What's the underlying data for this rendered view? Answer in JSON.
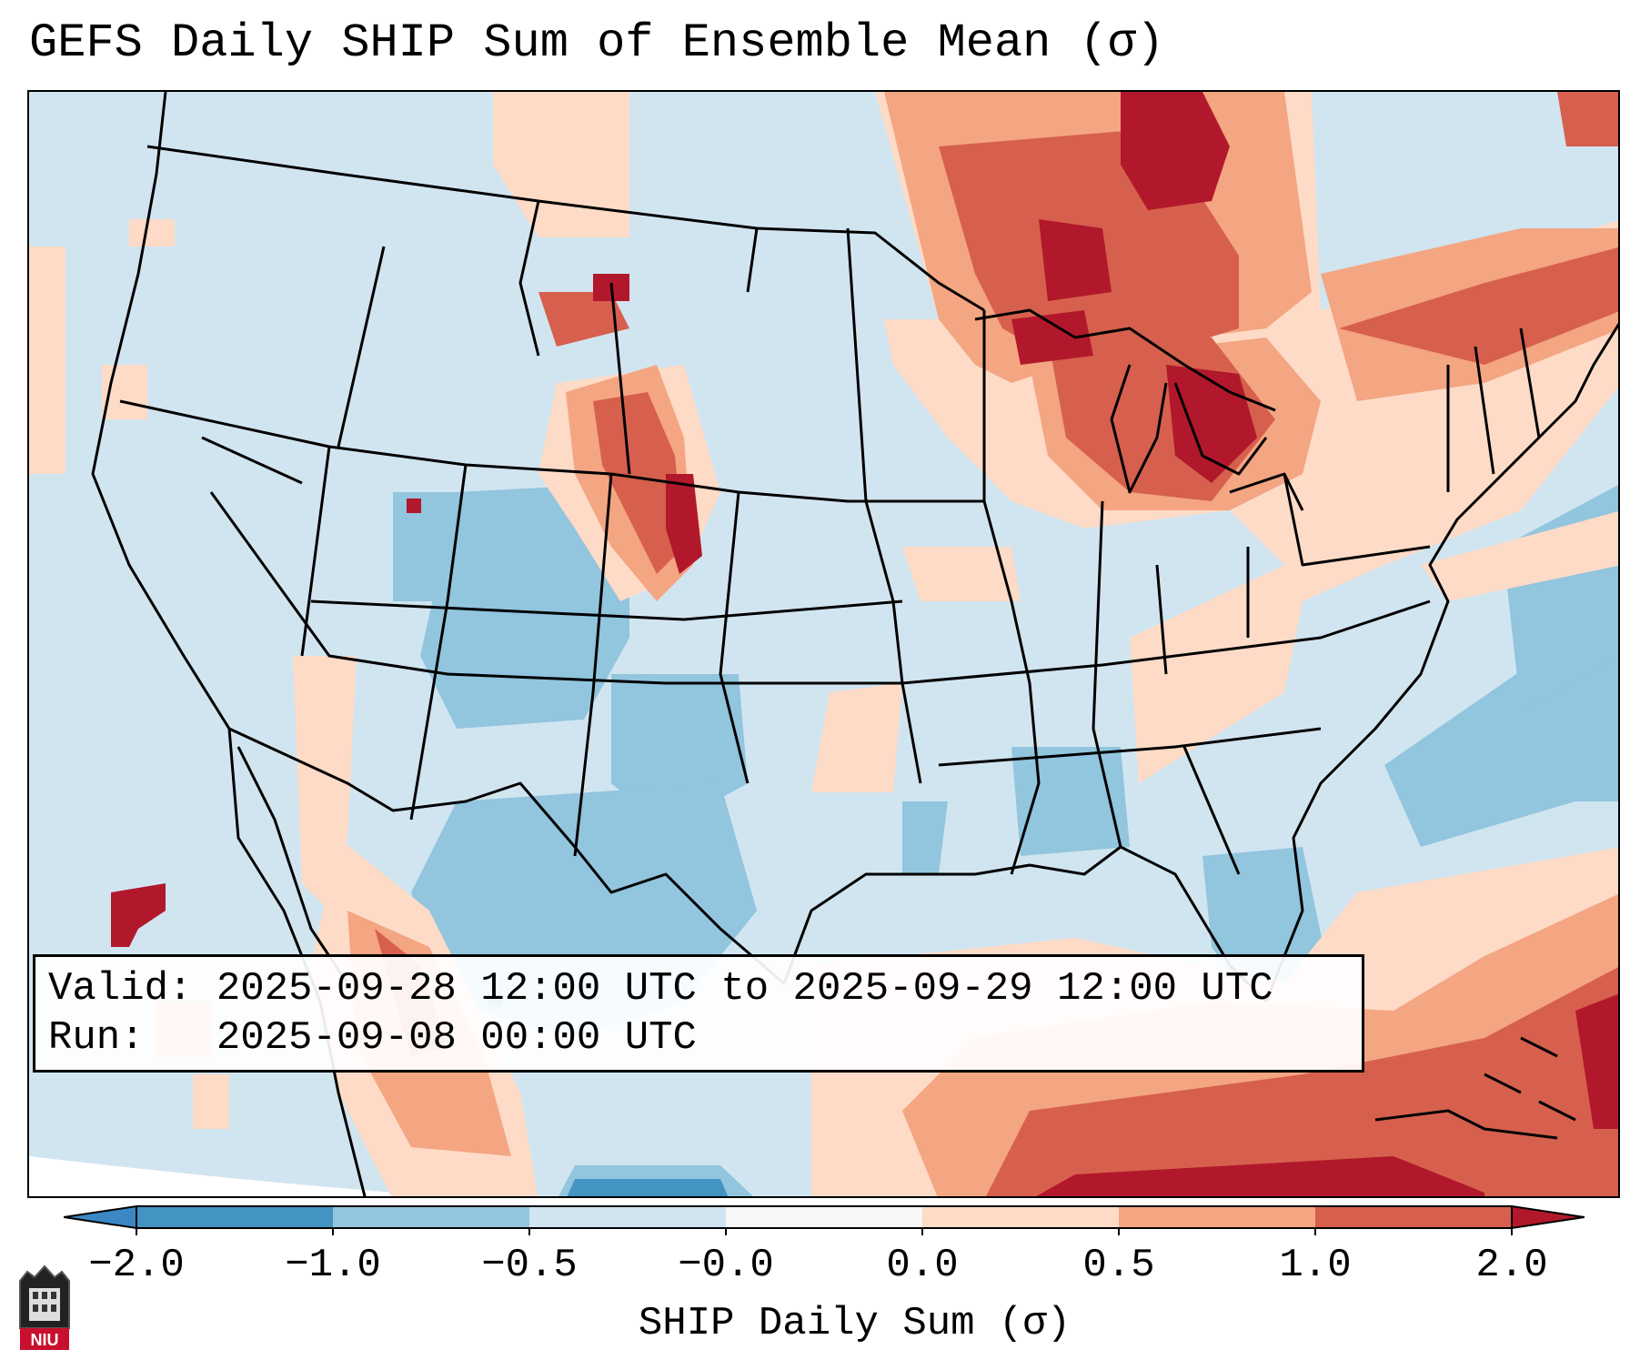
{
  "title": "GEFS Daily SHIP Sum of Ensemble Mean (σ)",
  "info": {
    "valid_label": "Valid:",
    "valid_value": "2025-09-28 12:00 UTC to 2025-09-29 12:00 UTC",
    "run_label": "Run:",
    "run_value": "2025-09-08 00:00 UTC"
  },
  "colorbar": {
    "label": "SHIP Daily Sum (σ)",
    "ticks": [
      "−2.0",
      "−1.0",
      "−0.5",
      "−0.0",
      "0.0",
      "0.5",
      "1.0",
      "2.0"
    ],
    "colors": {
      "under": "#3a87c4",
      "n2_n1": "#4393c3",
      "n1_n05": "#92c5de",
      "n05_0": "#d1e5f0",
      "p0_05": "#fddbc7",
      "p05_1": "#f4a582",
      "p1_2": "#d6604d",
      "over": "#b2182b"
    }
  },
  "logo": {
    "text": "NIU"
  }
}
